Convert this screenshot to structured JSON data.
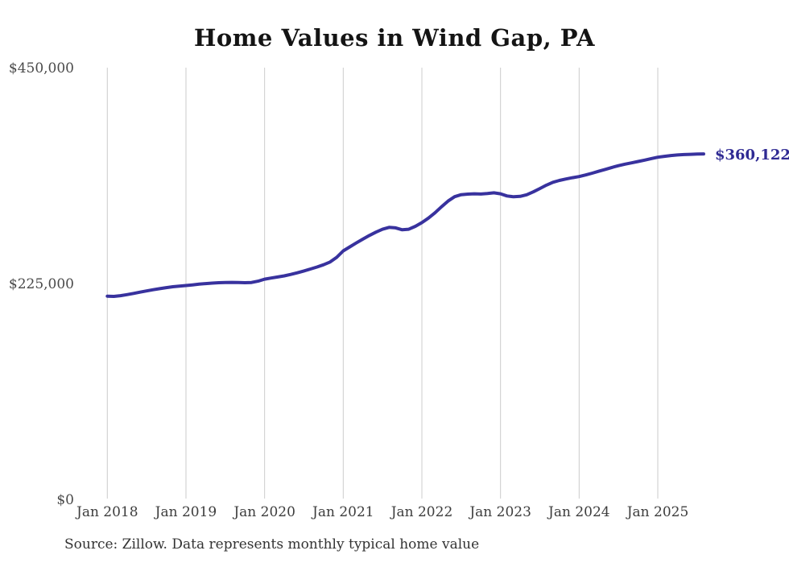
{
  "title": "Home Values in Wind Gap, PA",
  "source_note": "Source: Zillow. Data represents monthly typical home value",
  "colors": {
    "line": "#38329e",
    "end_label": "#2f2a93",
    "gridline": "#cccccc",
    "axis_label": "#444444",
    "title": "#141414",
    "source": "#333333",
    "background": "#ffffff"
  },
  "chart_data": {
    "type": "line",
    "title": "Home Values in Wind Gap, PA",
    "unit": "USD",
    "frequency": "monthly",
    "grid": "vertical",
    "legend": "none",
    "ylim": [
      0,
      450000
    ],
    "y_ticks": [
      {
        "value": 0,
        "label": "$0"
      },
      {
        "value": 225000,
        "label": "$225,000"
      },
      {
        "value": 450000,
        "label": "$450,000"
      }
    ],
    "x_ticks": [
      {
        "month_index": 0,
        "label": "Jan 2018"
      },
      {
        "month_index": 12,
        "label": "Jan 2019"
      },
      {
        "month_index": 24,
        "label": "Jan 2020"
      },
      {
        "month_index": 36,
        "label": "Jan 2021"
      },
      {
        "month_index": 48,
        "label": "Jan 2022"
      },
      {
        "month_index": 60,
        "label": "Jan 2023"
      },
      {
        "month_index": 72,
        "label": "Jan 2024"
      },
      {
        "month_index": 84,
        "label": "Jan 2025"
      }
    ],
    "x": [
      "2018-01",
      "2018-02",
      "2018-03",
      "2018-04",
      "2018-05",
      "2018-06",
      "2018-07",
      "2018-08",
      "2018-09",
      "2018-10",
      "2018-11",
      "2018-12",
      "2019-01",
      "2019-02",
      "2019-03",
      "2019-04",
      "2019-05",
      "2019-06",
      "2019-07",
      "2019-08",
      "2019-09",
      "2019-10",
      "2019-11",
      "2019-12",
      "2020-01",
      "2020-02",
      "2020-03",
      "2020-04",
      "2020-05",
      "2020-06",
      "2020-07",
      "2020-08",
      "2020-09",
      "2020-10",
      "2020-11",
      "2020-12",
      "2021-01",
      "2021-02",
      "2021-03",
      "2021-04",
      "2021-05",
      "2021-06",
      "2021-07",
      "2021-08",
      "2021-09",
      "2021-10",
      "2021-11",
      "2021-12",
      "2022-01",
      "2022-02",
      "2022-03",
      "2022-04",
      "2022-05",
      "2022-06",
      "2022-07",
      "2022-08",
      "2022-09",
      "2022-10",
      "2022-11",
      "2022-12",
      "2023-01",
      "2023-02",
      "2023-03",
      "2023-04",
      "2023-05",
      "2023-06",
      "2023-07",
      "2023-08",
      "2023-09",
      "2023-10",
      "2023-11",
      "2023-12",
      "2024-01",
      "2024-02",
      "2024-03",
      "2024-04",
      "2024-05",
      "2024-06",
      "2024-07",
      "2024-08",
      "2024-09",
      "2024-10",
      "2024-11",
      "2024-12",
      "2025-01",
      "2025-02",
      "2025-03",
      "2025-04",
      "2025-05",
      "2025-06",
      "2025-07",
      "2025-08"
    ],
    "series": [
      {
        "name": "Monthly typical home value",
        "values": [
          211800,
          211600,
          212300,
          213400,
          214700,
          216000,
          217300,
          218500,
          219600,
          220700,
          221600,
          222300,
          222900,
          223600,
          224300,
          224900,
          225400,
          225800,
          226100,
          226200,
          226000,
          225800,
          226100,
          227400,
          229500,
          230700,
          231800,
          233000,
          234500,
          236200,
          238100,
          240100,
          242200,
          244600,
          247400,
          252300,
          259000,
          263200,
          267300,
          271300,
          275100,
          278600,
          281600,
          283500,
          283000,
          281000,
          281600,
          284600,
          288500,
          293200,
          298700,
          305000,
          311000,
          315500,
          317600,
          318200,
          318500,
          318300,
          318800,
          319500,
          318500,
          316300,
          315400,
          315800,
          317500,
          320500,
          324000,
          327500,
          330500,
          332500,
          334000,
          335300,
          336500,
          338200,
          340000,
          342000,
          344000,
          346000,
          347800,
          349400,
          350800,
          352200,
          353600,
          355200,
          356600,
          357600,
          358400,
          359000,
          359400,
          359700,
          359900,
          360122
        ]
      }
    ],
    "end_annotation": {
      "text": "$360,122",
      "value": 360122,
      "month": "2025-08"
    }
  }
}
